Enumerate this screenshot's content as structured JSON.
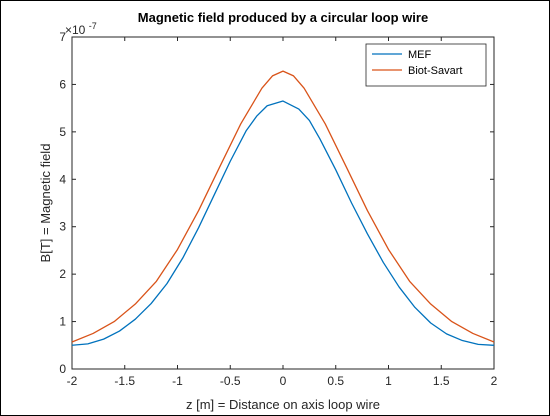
{
  "chart_data": {
    "type": "line",
    "title": "Magnetic field produced by a circular loop wire",
    "xlabel": "z [m] = Distance on axis loop wire",
    "ylabel": "B[T] = Magnetic field",
    "y_exponent_base": "×10",
    "y_exponent_power": "-7",
    "xlim": [
      -2,
      2
    ],
    "ylim": [
      0,
      7
    ],
    "xticks": [
      -2,
      -1.5,
      -1,
      -0.5,
      0,
      0.5,
      1,
      1.5,
      2
    ],
    "xtick_labels": [
      "-2",
      "-1.5",
      "-1",
      "-0.5",
      "0",
      "0.5",
      "1",
      "1.5",
      "2"
    ],
    "yticks": [
      0,
      1,
      2,
      3,
      4,
      5,
      6,
      7
    ],
    "ytick_labels": [
      "0",
      "1",
      "2",
      "3",
      "4",
      "5",
      "6",
      "7"
    ],
    "grid": false,
    "legend_position": "top-right",
    "series": [
      {
        "name": "MEF",
        "color": "#0072BD",
        "x": [
          -2,
          -1.85,
          -1.7,
          -1.55,
          -1.4,
          -1.25,
          -1.1,
          -0.95,
          -0.8,
          -0.65,
          -0.5,
          -0.35,
          -0.25,
          -0.15,
          0,
          0.15,
          0.25,
          0.35,
          0.5,
          0.65,
          0.8,
          0.95,
          1.1,
          1.25,
          1.4,
          1.55,
          1.7,
          1.85,
          2
        ],
        "y": [
          0.5,
          0.53,
          0.63,
          0.8,
          1.05,
          1.38,
          1.8,
          2.34,
          2.98,
          3.68,
          4.38,
          5.02,
          5.33,
          5.55,
          5.65,
          5.48,
          5.24,
          4.85,
          4.2,
          3.5,
          2.85,
          2.25,
          1.73,
          1.3,
          0.97,
          0.74,
          0.6,
          0.52,
          0.5
        ]
      },
      {
        "name": "Biot-Savart",
        "color": "#D95319",
        "x": [
          -2,
          -1.8,
          -1.6,
          -1.4,
          -1.2,
          -1.0,
          -0.8,
          -0.6,
          -0.4,
          -0.2,
          -0.1,
          0,
          0.1,
          0.2,
          0.4,
          0.6,
          0.8,
          1.0,
          1.2,
          1.4,
          1.6,
          1.8,
          2
        ],
        "y": [
          0.57,
          0.75,
          1.0,
          1.37,
          1.85,
          2.52,
          3.34,
          4.26,
          5.17,
          5.92,
          6.18,
          6.28,
          6.18,
          5.92,
          5.17,
          4.26,
          3.34,
          2.52,
          1.85,
          1.37,
          1.0,
          0.75,
          0.57
        ]
      }
    ]
  }
}
